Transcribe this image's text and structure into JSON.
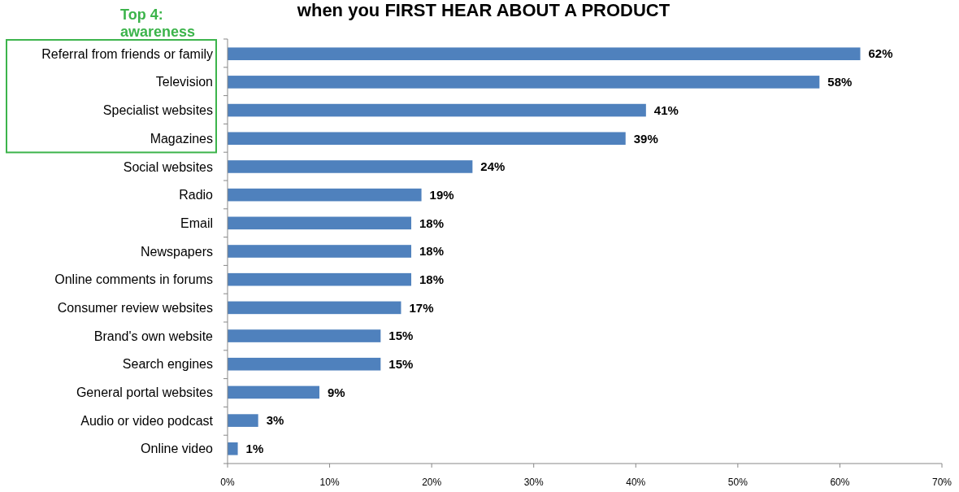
{
  "chart_data": {
    "type": "bar",
    "orientation": "horizontal",
    "title": "when you FIRST HEAR ABOUT A PRODUCT",
    "categories": [
      "Referral from friends or family",
      "Television",
      "Specialist websites",
      "Magazines",
      "Social websites",
      "Radio",
      "Email",
      "Newspapers",
      "Online comments in forums",
      "Consumer review websites",
      "Brand's own website",
      "Search engines",
      "General portal websites",
      "Audio or video podcast",
      "Online video"
    ],
    "values": [
      62,
      58,
      41,
      39,
      24,
      19,
      18,
      18,
      18,
      17,
      15,
      15,
      9,
      3,
      1
    ],
    "value_labels": [
      "62%",
      "58%",
      "41%",
      "39%",
      "24%",
      "19%",
      "18%",
      "18%",
      "18%",
      "17%",
      "15%",
      "15%",
      "9%",
      "3%",
      "1%"
    ],
    "color": "#4f81bd",
    "xlim": [
      0,
      70
    ],
    "xticks": [
      {
        "value": 0,
        "label": "0%"
      },
      {
        "value": 10,
        "label": "10%"
      },
      {
        "value": 20,
        "label": "20%"
      },
      {
        "value": 30,
        "label": "30%"
      },
      {
        "value": 40,
        "label": "40%"
      },
      {
        "value": 50,
        "label": "50%"
      },
      {
        "value": 60,
        "label": "60%"
      },
      {
        "value": 70,
        "label": "70%"
      }
    ],
    "annotations": [
      "Top 4:\nawareness"
    ],
    "grid": false
  }
}
